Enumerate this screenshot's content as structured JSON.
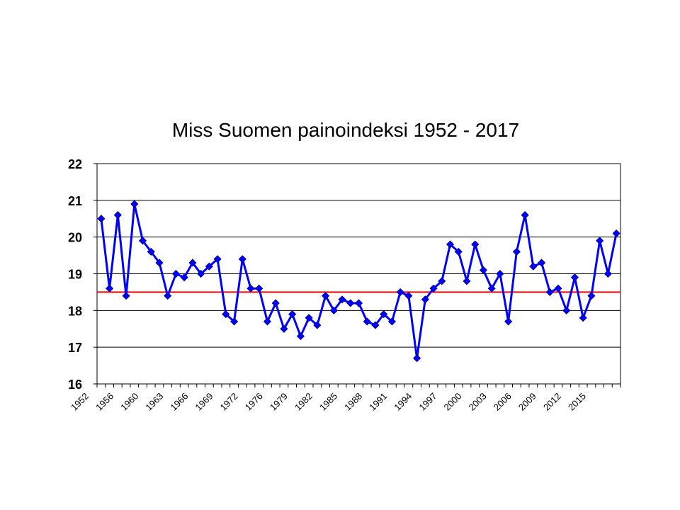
{
  "chart_data": {
    "type": "line",
    "title": "Miss Suomen painoindeksi 1952 - 2017",
    "xlabel": "",
    "ylabel": "",
    "ylim": [
      16,
      22
    ],
    "yticks": [
      16,
      17,
      18,
      19,
      20,
      21,
      22
    ],
    "x_tick_labels": [
      "1952",
      "1956",
      "1960",
      "1963",
      "1966",
      "1969",
      "1972",
      "1976",
      "1979",
      "1982",
      "1985",
      "1988",
      "1991",
      "1994",
      "1997",
      "2000",
      "2003",
      "2006",
      "2009",
      "2012",
      "2015"
    ],
    "grid": "horizontal",
    "legend": "none",
    "series_color": "#0000FF",
    "reference_line": {
      "value": 18.5,
      "color": "#FF0000"
    },
    "series": [
      {
        "values": [
          20.5,
          18.6,
          20.6,
          18.4,
          20.9,
          19.9,
          19.6,
          19.3,
          18.4,
          19.0,
          18.9,
          19.3,
          19.0,
          19.2,
          19.4,
          17.9,
          17.7,
          19.4,
          18.6,
          18.6,
          17.7,
          18.2,
          17.5,
          17.9,
          17.3,
          17.8,
          17.6,
          18.4,
          18.0,
          18.3,
          18.2,
          18.2,
          17.7,
          17.6,
          17.9,
          17.7,
          18.5,
          18.4,
          16.7,
          18.3,
          18.6,
          18.8,
          19.8,
          19.6,
          18.8,
          19.8,
          19.1,
          18.6,
          19.0,
          17.7,
          19.6,
          20.6,
          19.2,
          19.3,
          18.5,
          18.6,
          18.0,
          18.9,
          17.8,
          18.4,
          19.9,
          19.0,
          20.1
        ]
      }
    ]
  }
}
